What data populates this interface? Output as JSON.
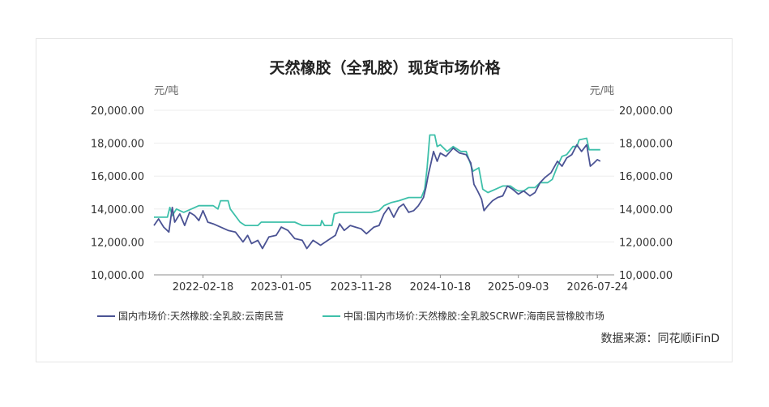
{
  "chart_data": {
    "type": "line",
    "title": "天然橡胶（全乳胶）现货市场价格",
    "ylabel_left": "元/吨",
    "ylabel_right": "元/吨",
    "ylim": [
      10000,
      20000
    ],
    "y_ticks": [
      "20,000.00",
      "18,000.00",
      "16,000.00",
      "14,000.00",
      "12,000.00",
      "10,000.00"
    ],
    "y_tick_values": [
      20000,
      18000,
      16000,
      14000,
      12000,
      10000
    ],
    "x_range": [
      "2021-08-01",
      "2026-10-01"
    ],
    "x_ticks": [
      "2022-02-18",
      "2023-01-05",
      "2023-11-28",
      "2024-10-18",
      "2025-09-03",
      "2026-07-24"
    ],
    "grid": true,
    "legend_position": "bottom",
    "source": "数据来源：同花顺iFinD",
    "series": [
      {
        "name": "国内市场价:天然橡胶:全乳胶:云南民营",
        "color": "#4b5394",
        "points": [
          [
            "2021-08-01",
            13000
          ],
          [
            "2021-08-20",
            13400
          ],
          [
            "2021-09-10",
            12900
          ],
          [
            "2021-10-01",
            12600
          ],
          [
            "2021-10-15",
            14100
          ],
          [
            "2021-10-25",
            13200
          ],
          [
            "2021-11-15",
            13700
          ],
          [
            "2021-12-05",
            13000
          ],
          [
            "2021-12-25",
            13800
          ],
          [
            "2022-01-15",
            13600
          ],
          [
            "2022-02-01",
            13300
          ],
          [
            "2022-02-18",
            13900
          ],
          [
            "2022-03-10",
            13200
          ],
          [
            "2022-04-01",
            13100
          ],
          [
            "2022-05-01",
            12900
          ],
          [
            "2022-06-01",
            12700
          ],
          [
            "2022-07-01",
            12600
          ],
          [
            "2022-08-01",
            12000
          ],
          [
            "2022-08-20",
            12400
          ],
          [
            "2022-09-05",
            11900
          ],
          [
            "2022-10-01",
            12100
          ],
          [
            "2022-10-20",
            11600
          ],
          [
            "2022-11-15",
            12300
          ],
          [
            "2022-12-15",
            12400
          ],
          [
            "2023-01-05",
            12900
          ],
          [
            "2023-02-01",
            12700
          ],
          [
            "2023-03-01",
            12200
          ],
          [
            "2023-04-01",
            12100
          ],
          [
            "2023-04-20",
            11600
          ],
          [
            "2023-05-15",
            12100
          ],
          [
            "2023-06-15",
            11800
          ],
          [
            "2023-07-15",
            12100
          ],
          [
            "2023-08-15",
            12400
          ],
          [
            "2023-09-01",
            13100
          ],
          [
            "2023-09-20",
            12700
          ],
          [
            "2023-10-15",
            13000
          ],
          [
            "2023-11-05",
            12900
          ],
          [
            "2023-11-28",
            12800
          ],
          [
            "2023-12-20",
            12500
          ],
          [
            "2024-01-20",
            12900
          ],
          [
            "2024-02-10",
            13000
          ],
          [
            "2024-03-01",
            13700
          ],
          [
            "2024-03-20",
            14100
          ],
          [
            "2024-04-10",
            13500
          ],
          [
            "2024-05-01",
            14100
          ],
          [
            "2024-05-20",
            14300
          ],
          [
            "2024-06-10",
            13800
          ],
          [
            "2024-07-01",
            13900
          ],
          [
            "2024-07-20",
            14200
          ],
          [
            "2024-08-10",
            14700
          ],
          [
            "2024-08-20",
            15300
          ],
          [
            "2024-08-30",
            16100
          ],
          [
            "2024-09-10",
            16800
          ],
          [
            "2024-09-20",
            17500
          ],
          [
            "2024-10-05",
            16900
          ],
          [
            "2024-10-18",
            17400
          ],
          [
            "2024-11-10",
            17200
          ],
          [
            "2024-12-10",
            17700
          ],
          [
            "2025-01-05",
            17400
          ],
          [
            "2025-02-01",
            17300
          ],
          [
            "2025-02-20",
            16800
          ],
          [
            "2025-03-05",
            15500
          ],
          [
            "2025-03-20",
            15100
          ],
          [
            "2025-04-05",
            14600
          ],
          [
            "2025-04-15",
            13900
          ],
          [
            "2025-05-01",
            14200
          ],
          [
            "2025-05-20",
            14500
          ],
          [
            "2025-06-10",
            14700
          ],
          [
            "2025-07-01",
            14800
          ],
          [
            "2025-07-20",
            15400
          ],
          [
            "2025-08-10",
            15200
          ],
          [
            "2025-09-03",
            14900
          ],
          [
            "2025-09-25",
            15100
          ],
          [
            "2025-10-20",
            14800
          ],
          [
            "2025-11-10",
            15000
          ],
          [
            "2025-12-01",
            15600
          ],
          [
            "2025-12-20",
            15900
          ],
          [
            "2026-01-15",
            16200
          ],
          [
            "2026-02-10",
            16900
          ],
          [
            "2026-03-01",
            16600
          ],
          [
            "2026-03-20",
            17100
          ],
          [
            "2026-04-10",
            17300
          ],
          [
            "2026-05-01",
            17900
          ],
          [
            "2026-05-20",
            17500
          ],
          [
            "2026-06-10",
            17900
          ],
          [
            "2026-06-25",
            16600
          ],
          [
            "2026-07-10",
            16800
          ],
          [
            "2026-07-24",
            17000
          ],
          [
            "2026-08-05",
            16900
          ]
        ]
      },
      {
        "name": "中国:国内市场价:天然橡胶:全乳胶SCRWF:海南民营橡胶市场",
        "color": "#3ec0aa",
        "points": [
          [
            "2021-08-01",
            13500
          ],
          [
            "2021-09-25",
            13500
          ],
          [
            "2021-10-05",
            14100
          ],
          [
            "2021-10-15",
            13600
          ],
          [
            "2021-11-01",
            14000
          ],
          [
            "2021-12-01",
            13800
          ],
          [
            "2022-01-01",
            14000
          ],
          [
            "2022-02-01",
            14200
          ],
          [
            "2022-04-01",
            14200
          ],
          [
            "2022-04-20",
            14000
          ],
          [
            "2022-05-01",
            14500
          ],
          [
            "2022-06-01",
            14500
          ],
          [
            "2022-06-10",
            14000
          ],
          [
            "2022-07-05",
            13500
          ],
          [
            "2022-07-20",
            13200
          ],
          [
            "2022-08-10",
            13000
          ],
          [
            "2022-10-01",
            13000
          ],
          [
            "2022-10-15",
            13200
          ],
          [
            "2023-01-05",
            13200
          ],
          [
            "2023-03-01",
            13200
          ],
          [
            "2023-04-01",
            13000
          ],
          [
            "2023-06-15",
            13000
          ],
          [
            "2023-06-20",
            13300
          ],
          [
            "2023-07-01",
            13000
          ],
          [
            "2023-08-01",
            13000
          ],
          [
            "2023-08-10",
            13700
          ],
          [
            "2023-09-01",
            13800
          ],
          [
            "2023-11-28",
            13800
          ],
          [
            "2024-01-10",
            13800
          ],
          [
            "2024-02-10",
            13900
          ],
          [
            "2024-03-01",
            14200
          ],
          [
            "2024-04-01",
            14400
          ],
          [
            "2024-05-01",
            14500
          ],
          [
            "2024-06-10",
            14700
          ],
          [
            "2024-08-01",
            14700
          ],
          [
            "2024-08-15",
            15200
          ],
          [
            "2024-08-25",
            16500
          ],
          [
            "2024-09-05",
            18500
          ],
          [
            "2024-09-25",
            18500
          ],
          [
            "2024-10-05",
            17800
          ],
          [
            "2024-10-18",
            17900
          ],
          [
            "2024-11-15",
            17500
          ],
          [
            "2024-12-10",
            17800
          ],
          [
            "2025-01-10",
            17500
          ],
          [
            "2025-02-01",
            17500
          ],
          [
            "2025-02-15",
            16900
          ],
          [
            "2025-03-01",
            16300
          ],
          [
            "2025-03-25",
            16500
          ],
          [
            "2025-04-10",
            15200
          ],
          [
            "2025-05-01",
            15000
          ],
          [
            "2025-06-01",
            15200
          ],
          [
            "2025-07-01",
            15400
          ],
          [
            "2025-08-01",
            15400
          ],
          [
            "2025-08-20",
            15200
          ],
          [
            "2025-09-03",
            15100
          ],
          [
            "2025-09-25",
            15100
          ],
          [
            "2025-10-15",
            15300
          ],
          [
            "2025-11-10",
            15300
          ],
          [
            "2025-12-01",
            15600
          ],
          [
            "2026-01-01",
            15600
          ],
          [
            "2026-01-20",
            15800
          ],
          [
            "2026-02-10",
            16600
          ],
          [
            "2026-03-01",
            17200
          ],
          [
            "2026-03-20",
            17300
          ],
          [
            "2026-04-15",
            17800
          ],
          [
            "2026-05-01",
            17800
          ],
          [
            "2026-05-10",
            18200
          ],
          [
            "2026-06-10",
            18300
          ],
          [
            "2026-06-20",
            17600
          ],
          [
            "2026-08-05",
            17600
          ]
        ]
      }
    ]
  }
}
